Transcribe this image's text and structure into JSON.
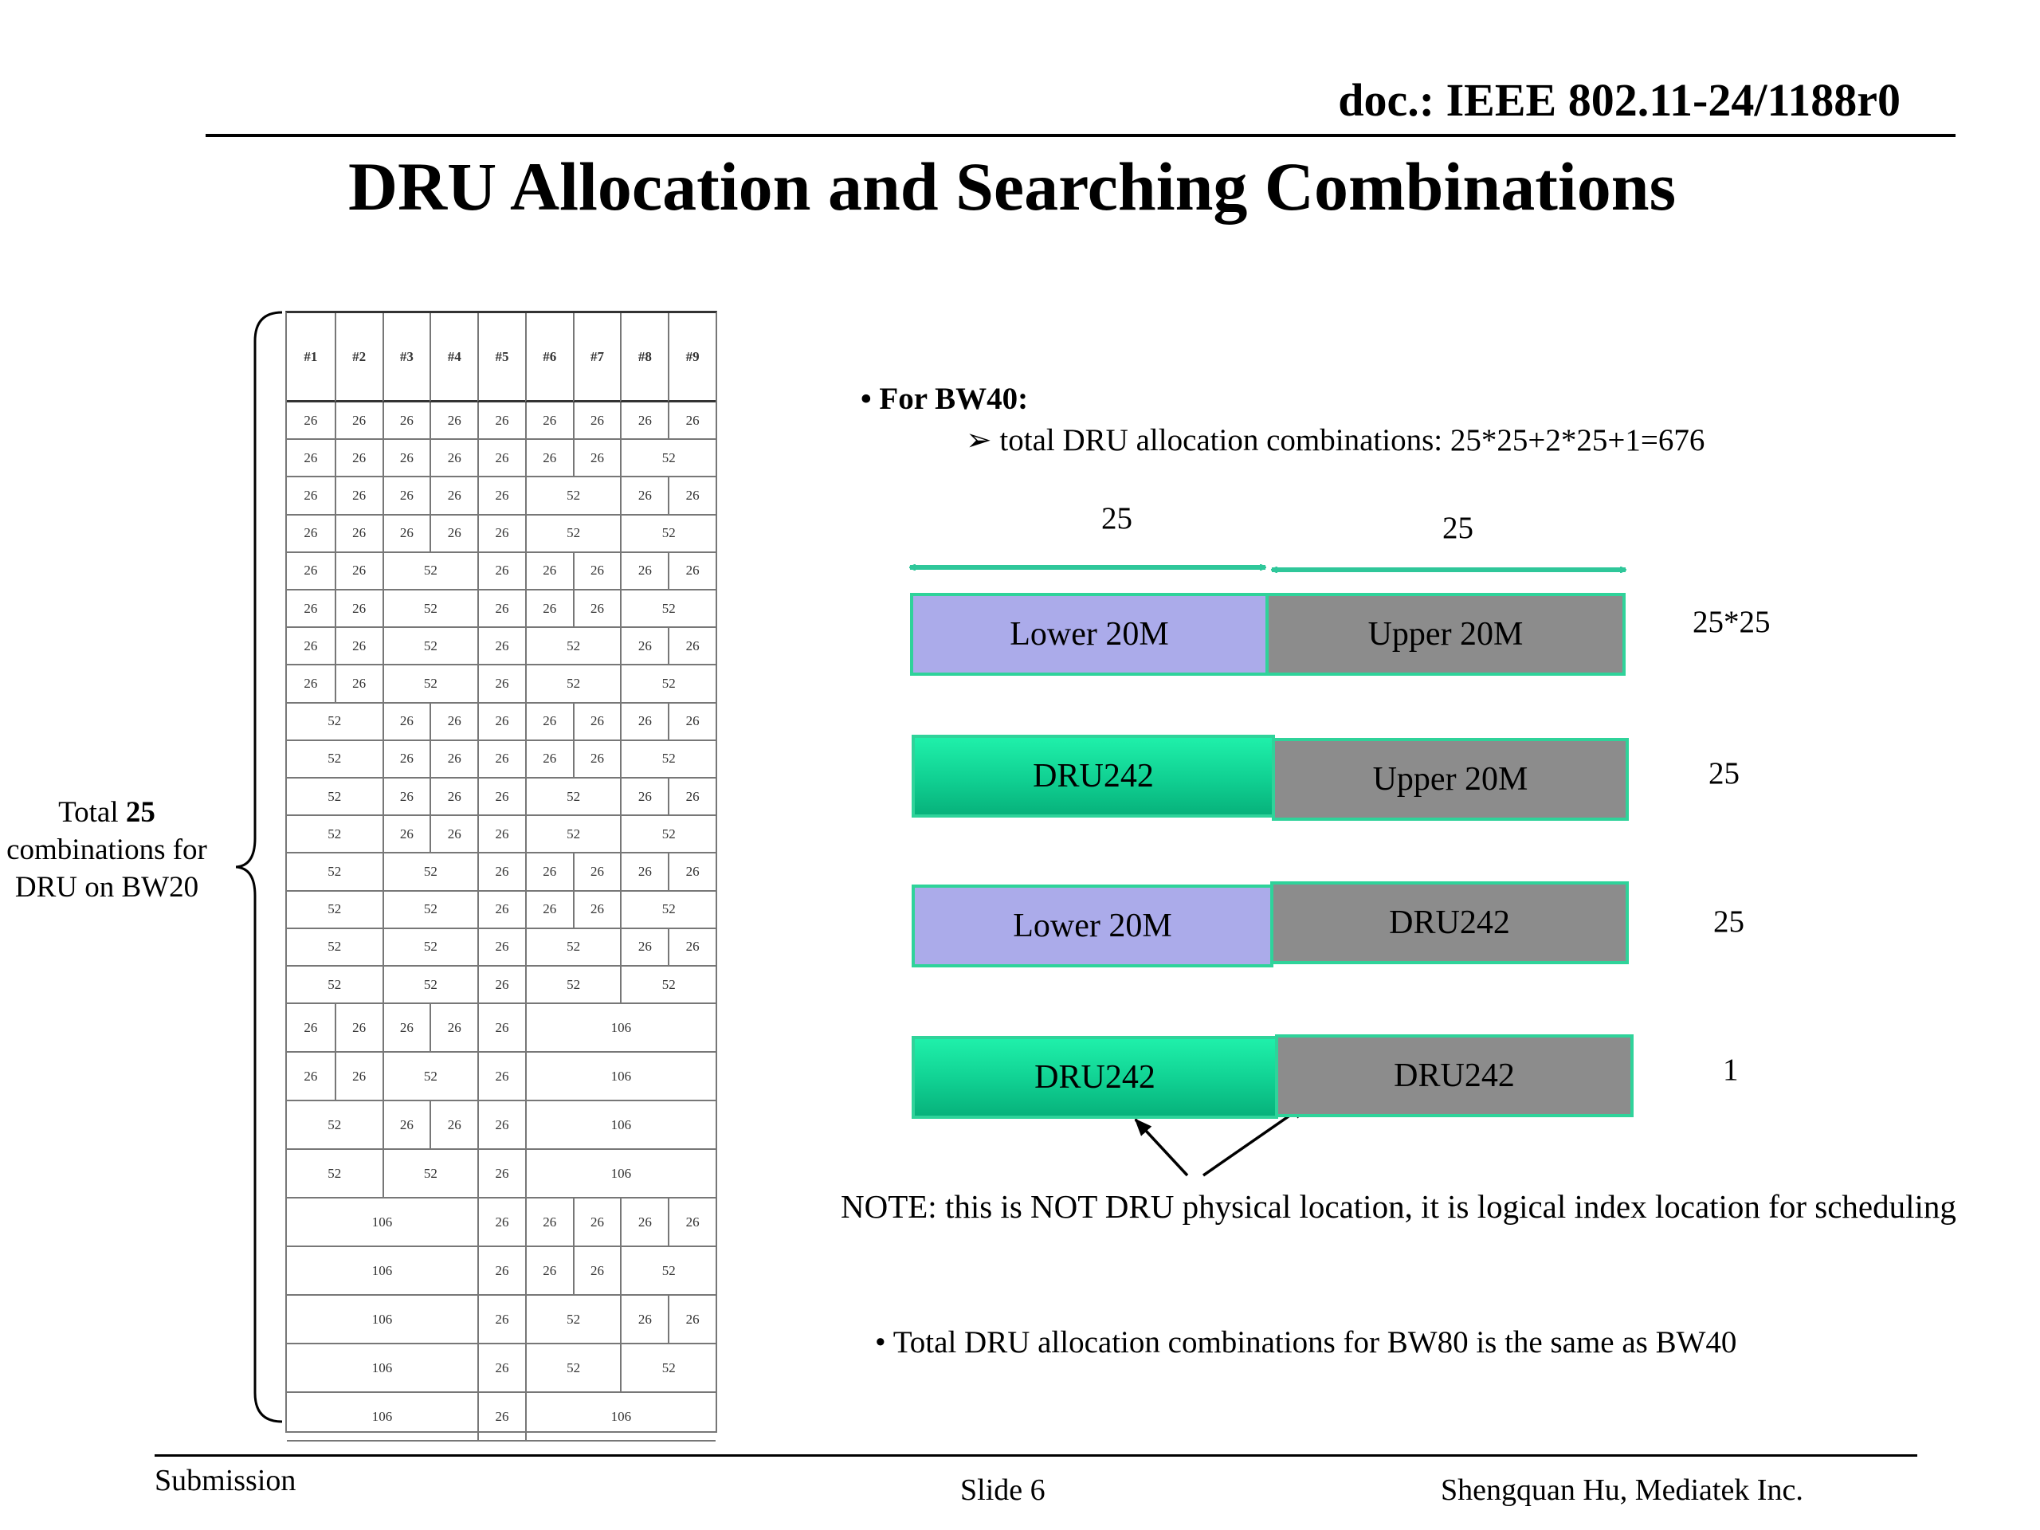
{
  "header": {
    "doc_id": "doc.: IEEE 802.11-24/1188r0",
    "title": "DRU Allocation and Searching Combinations"
  },
  "table": {
    "headers": [
      "#1",
      "#2",
      "#3",
      "#4",
      "#5",
      "#6",
      "#7",
      "#8",
      "#9"
    ],
    "rows": [
      [
        "26",
        "26",
        "26",
        "26",
        "26",
        "26",
        "26",
        "26",
        "26"
      ],
      [
        "26",
        "26",
        "26",
        "26",
        "26",
        "26",
        "26",
        "52"
      ],
      [
        "26",
        "26",
        "26",
        "26",
        "26",
        "52",
        "26",
        "26"
      ],
      [
        "26",
        "26",
        "26",
        "26",
        "26",
        "52",
        "52"
      ],
      [
        "26",
        "26",
        "52",
        "26",
        "26",
        "26",
        "26",
        "26"
      ],
      [
        "26",
        "26",
        "52",
        "26",
        "26",
        "26",
        "52"
      ],
      [
        "26",
        "26",
        "52",
        "26",
        "52",
        "26",
        "26"
      ],
      [
        "26",
        "26",
        "52",
        "26",
        "52",
        "52"
      ],
      [
        "52",
        "26",
        "26",
        "26",
        "26",
        "26",
        "26",
        "26"
      ],
      [
        "52",
        "26",
        "26",
        "26",
        "26",
        "26",
        "52"
      ],
      [
        "52",
        "26",
        "26",
        "26",
        "52",
        "26",
        "26"
      ],
      [
        "52",
        "26",
        "26",
        "26",
        "52",
        "52"
      ],
      [
        "52",
        "52",
        "26",
        "26",
        "26",
        "26",
        "26"
      ],
      [
        "52",
        "52",
        "26",
        "26",
        "26",
        "52"
      ],
      [
        "52",
        "52",
        "26",
        "52",
        "26",
        "26"
      ],
      [
        "52",
        "52",
        "26",
        "52",
        "52"
      ],
      [
        "26",
        "26",
        "26",
        "26",
        "26",
        "106"
      ],
      [
        "26",
        "26",
        "52",
        "26",
        "106"
      ],
      [
        "52",
        "26",
        "26",
        "26",
        "106"
      ],
      [
        "52",
        "52",
        "26",
        "106"
      ],
      [
        "106",
        "26",
        "26",
        "26",
        "26",
        "26"
      ],
      [
        "106",
        "26",
        "26",
        "26",
        "52"
      ],
      [
        "106",
        "26",
        "52",
        "26",
        "26"
      ],
      [
        "106",
        "26",
        "52",
        "52"
      ],
      [
        "106",
        "26",
        "106"
      ]
    ]
  },
  "brace_label": {
    "prefix": "Total ",
    "count": "25",
    "rest": " combinations for DRU on BW20"
  },
  "bw40": {
    "heading": "• For BW40:",
    "sub": "➢ total DRU allocation combinations: 25*25+2*25+1=676",
    "span_left": "25",
    "span_right": "25",
    "rows": [
      {
        "left": "Lower 20M",
        "right": "Upper 20M",
        "count": "25*25"
      },
      {
        "left": "DRU242",
        "right": "Upper 20M",
        "count": "25"
      },
      {
        "left": "Lower 20M",
        "right": "DRU242",
        "count": "25"
      },
      {
        "left": "DRU242",
        "right": "DRU242",
        "count": "1"
      }
    ]
  },
  "note": "NOTE: this is NOT DRU physical location, it is logical index location for scheduling",
  "bw80_note": "• Total DRU allocation combinations for BW80 is the same as BW40",
  "footer": {
    "left": "Submission",
    "center": "Slide 6",
    "right": "Shengquan Hu, Mediatek Inc."
  },
  "colors": {
    "lower": "#ababea",
    "upper": "#8c8c8c",
    "dru": "#10d092",
    "arrow": "#2fc79a",
    "border": "#2fd39a"
  }
}
